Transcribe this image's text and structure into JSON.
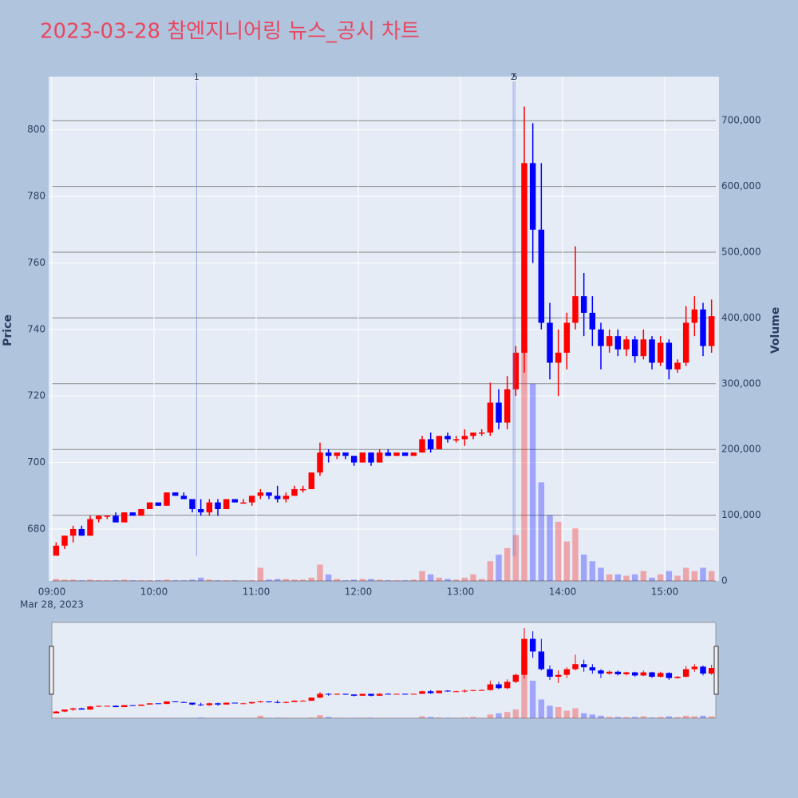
{
  "chart_data": {
    "type": "candlestick",
    "title": "2023-03-28 참엔지니어링 뉴스_공시 차트",
    "yaxis_label": "Price",
    "y2axis_label": "Volume",
    "x_date_label": "Mar 28, 2023",
    "increasing_color": "#ff0000",
    "decreasing_color": "#0000ff",
    "x": [
      "09:00",
      "09:05",
      "09:10",
      "09:15",
      "09:20",
      "09:25",
      "09:30",
      "09:35",
      "09:40",
      "09:45",
      "09:50",
      "09:55",
      "10:00",
      "10:05",
      "10:10",
      "10:15",
      "10:20",
      "10:25",
      "10:30",
      "10:35",
      "10:40",
      "10:45",
      "10:50",
      "10:55",
      "11:00",
      "11:05",
      "11:10",
      "11:15",
      "11:20",
      "11:25",
      "11:30",
      "11:35",
      "11:40",
      "11:45",
      "11:50",
      "11:55",
      "12:00",
      "12:05",
      "12:10",
      "12:15",
      "12:20",
      "12:25",
      "12:30",
      "12:35",
      "12:40",
      "12:45",
      "12:50",
      "12:55",
      "13:00",
      "13:05",
      "13:10",
      "13:15",
      "13:20",
      "13:25",
      "13:30",
      "13:35",
      "13:40",
      "13:45",
      "13:50",
      "13:55",
      "14:00",
      "14:05",
      "14:10",
      "14:15",
      "14:20",
      "14:25",
      "14:30",
      "14:35",
      "14:40",
      "14:45",
      "14:50",
      "14:55",
      "15:00",
      "15:05",
      "15:10",
      "15:15",
      "15:20",
      "15:25"
    ],
    "open": [
      672,
      675,
      678,
      680,
      678,
      683,
      684,
      684,
      682,
      685,
      684,
      686,
      688,
      687,
      691,
      690,
      689,
      686,
      685,
      688,
      686,
      689,
      688,
      688,
      690,
      691,
      690,
      689,
      690,
      692,
      692,
      697,
      703,
      702,
      703,
      702,
      700,
      703,
      700,
      703,
      702,
      703,
      702,
      703,
      707,
      704,
      708,
      707,
      707,
      708,
      709,
      709,
      718,
      712,
      722,
      733,
      790,
      770,
      742,
      730,
      733,
      742,
      750,
      745,
      740,
      735,
      738,
      734,
      737,
      732,
      737,
      730,
      736,
      728,
      730,
      742,
      746,
      735
    ],
    "high": [
      676,
      678,
      681,
      681,
      684,
      684,
      684,
      685,
      685,
      685,
      686,
      688,
      688,
      691,
      691,
      691,
      689,
      689,
      689,
      689,
      689,
      689,
      689,
      690,
      692,
      691,
      693,
      691,
      693,
      693,
      697,
      706,
      704,
      703,
      703,
      702,
      703,
      703,
      704,
      704,
      703,
      703,
      703,
      708,
      709,
      708,
      709,
      708,
      710,
      709,
      710,
      724,
      722,
      726,
      735,
      807,
      802,
      790,
      748,
      740,
      745,
      765,
      757,
      750,
      742,
      740,
      740,
      738,
      738,
      740,
      738,
      738,
      737,
      731,
      747,
      750,
      748,
      749
    ],
    "low": [
      672,
      674,
      676,
      678,
      678,
      682,
      683,
      682,
      682,
      684,
      684,
      686,
      687,
      687,
      690,
      689,
      685,
      684,
      684,
      684,
      686,
      688,
      688,
      687,
      689,
      689,
      688,
      688,
      690,
      691,
      692,
      696,
      700,
      701,
      701,
      699,
      700,
      699,
      700,
      702,
      702,
      702,
      702,
      703,
      703,
      704,
      706,
      706,
      705,
      707,
      708,
      708,
      710,
      710,
      720,
      727,
      760,
      740,
      725,
      720,
      728,
      740,
      738,
      735,
      728,
      733,
      732,
      732,
      730,
      731,
      728,
      729,
      725,
      727,
      729,
      738,
      732,
      733
    ],
    "close": [
      675,
      678,
      680,
      678,
      683,
      684,
      684,
      682,
      685,
      684,
      686,
      688,
      687,
      691,
      690,
      689,
      686,
      685,
      688,
      686,
      689,
      688,
      688,
      690,
      691,
      690,
      689,
      690,
      692,
      692,
      697,
      703,
      702,
      703,
      702,
      700,
      703,
      700,
      703,
      702,
      703,
      702,
      703,
      707,
      704,
      708,
      707,
      707,
      708,
      709,
      709,
      718,
      712,
      722,
      733,
      790,
      770,
      742,
      730,
      733,
      742,
      750,
      745,
      740,
      735,
      738,
      734,
      737,
      732,
      737,
      730,
      736,
      728,
      730,
      742,
      746,
      735,
      744
    ],
    "volume": [
      3000,
      2000,
      2000,
      1000,
      2000,
      1000,
      1000,
      1000,
      2000,
      1000,
      1000,
      1000,
      1000,
      2000,
      1000,
      1000,
      2000,
      5000,
      2000,
      1000,
      1000,
      1000,
      500,
      1000,
      20000,
      2000,
      3000,
      3000,
      2000,
      2000,
      5000,
      25000,
      10000,
      3000,
      1000,
      2000,
      3000,
      3000,
      2000,
      1000,
      1000,
      1000,
      2000,
      15000,
      10000,
      5000,
      3000,
      2000,
      5000,
      10000,
      3000,
      30000,
      40000,
      50000,
      70000,
      500000,
      300000,
      150000,
      100000,
      90000,
      60000,
      80000,
      40000,
      30000,
      20000,
      10000,
      10000,
      8000,
      10000,
      15000,
      5000,
      10000,
      15000,
      8000,
      20000,
      15000,
      20000,
      15000
    ],
    "xlim": [
      "09:00",
      "15:30"
    ],
    "xticks": [
      "09:00",
      "10:00",
      "11:00",
      "12:00",
      "13:00",
      "14:00",
      "15:00"
    ],
    "ylim": [
      664.4,
      816
    ],
    "yticks": [
      680,
      700,
      720,
      740,
      760,
      780,
      800
    ],
    "y2lim": [
      0,
      767000
    ],
    "y2ticks": [
      0,
      {
        "value": 100000,
        "label": "100,000"
      },
      {
        "value": 200000,
        "label": "200,000"
      },
      {
        "value": 300000,
        "label": "300,000"
      },
      {
        "value": 400000,
        "label": "400,000"
      },
      {
        "value": 500000,
        "label": "500,000"
      },
      {
        "value": 600000,
        "label": "600,000"
      },
      {
        "value": 700000,
        "label": "700,000"
      }
    ],
    "annotations": [
      {
        "x": "10:25",
        "label": "1"
      },
      {
        "x": "13:31",
        "label": "2"
      },
      {
        "x": "13:32",
        "label": "5"
      }
    ],
    "grid": true,
    "rangeslider": true
  }
}
